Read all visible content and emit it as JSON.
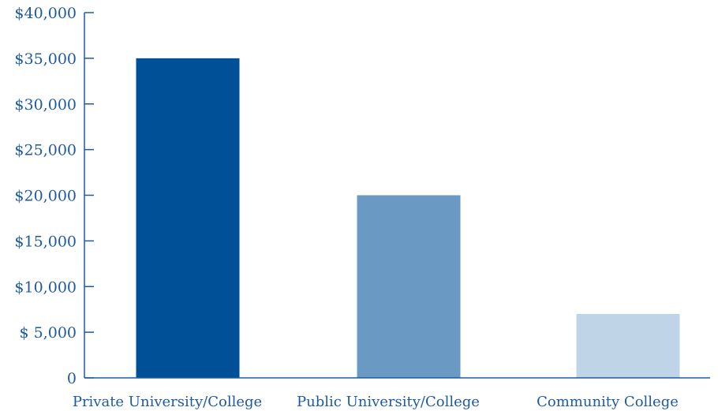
{
  "chart_data": {
    "type": "bar",
    "title": "",
    "xlabel": "",
    "ylabel": "",
    "categories": [
      "Private University/College",
      "Public University/College",
      "Community College"
    ],
    "values": [
      35000,
      20000,
      7000
    ],
    "ylim": [
      0,
      40000
    ],
    "y_ticks": [
      0,
      5000,
      10000,
      15000,
      20000,
      25000,
      30000,
      35000,
      40000
    ],
    "y_tick_labels": [
      "0",
      "$  5,000",
      "$10,000",
      "$15,000",
      "$20,000",
      "$25,000",
      "$30,000",
      "$35,000",
      "$40,000"
    ],
    "bar_colors": [
      "#005098",
      "#6a9ac4",
      "#c0d4e8"
    ],
    "axis_color": "#1e5aa0",
    "grid": false,
    "legend": "none"
  }
}
